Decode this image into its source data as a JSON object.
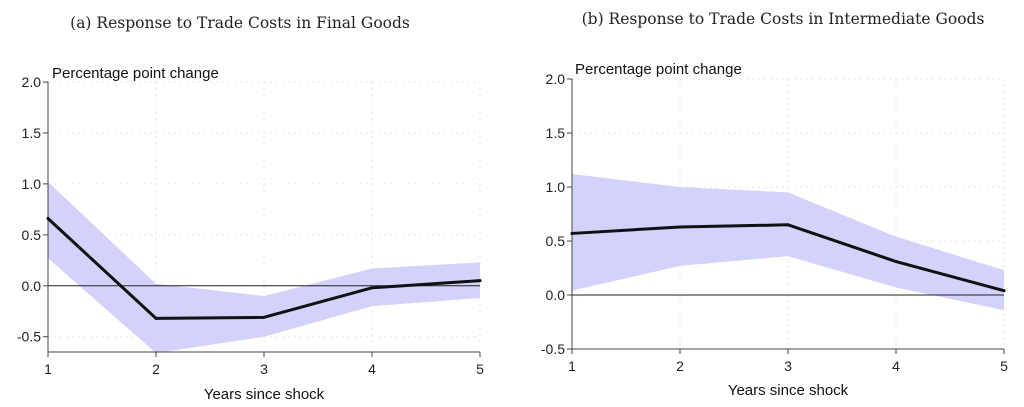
{
  "chart_data": [
    {
      "type": "line",
      "title": "(a) Response to Trade Costs in Final Goods",
      "xlabel": "Years since shock",
      "ylabel": "Percentage point change",
      "x": [
        1,
        2,
        3,
        4,
        5
      ],
      "xlim": [
        1,
        5
      ],
      "ylim": [
        -0.65,
        2.0
      ],
      "xticks": [
        "1",
        "2",
        "3",
        "4",
        "5"
      ],
      "yticks": [
        "2.0",
        "1.5",
        "1.0",
        "0.5",
        "0.0",
        "-0.5"
      ],
      "ytick_values": [
        2.0,
        1.5,
        1.0,
        0.5,
        0.0,
        -0.5
      ],
      "grid": true,
      "zero_line": true,
      "series": [
        {
          "values": [
            0.66,
            -0.32,
            -0.31,
            -0.02,
            0.05
          ],
          "ci_upper": [
            1.02,
            0.02,
            -0.1,
            0.17,
            0.23
          ],
          "ci_lower": [
            0.27,
            -0.66,
            -0.5,
            -0.2,
            -0.12
          ]
        }
      ]
    },
    {
      "type": "line",
      "title": "(b) Response to Trade Costs in Intermediate Goods",
      "xlabel": "Years since shock",
      "ylabel": "Percentage point change",
      "x": [
        1,
        2,
        3,
        4,
        5
      ],
      "xlim": [
        1,
        5
      ],
      "ylim": [
        -0.5,
        2.0
      ],
      "xticks": [
        "1",
        "2",
        "3",
        "4",
        "5"
      ],
      "yticks": [
        "2.0",
        "1.5",
        "1.0",
        "0.5",
        "0.0",
        "-0.5"
      ],
      "ytick_values": [
        2.0,
        1.5,
        1.0,
        0.5,
        0.0,
        -0.5
      ],
      "grid": true,
      "zero_line": true,
      "series": [
        {
          "values": [
            0.57,
            0.63,
            0.65,
            0.31,
            0.04
          ],
          "ci_upper": [
            1.12,
            1.0,
            0.95,
            0.54,
            0.23
          ],
          "ci_lower": [
            0.04,
            0.27,
            0.36,
            0.07,
            -0.14
          ]
        }
      ]
    }
  ],
  "colors": {
    "band": "#d2d2fb",
    "line": "#111111"
  }
}
